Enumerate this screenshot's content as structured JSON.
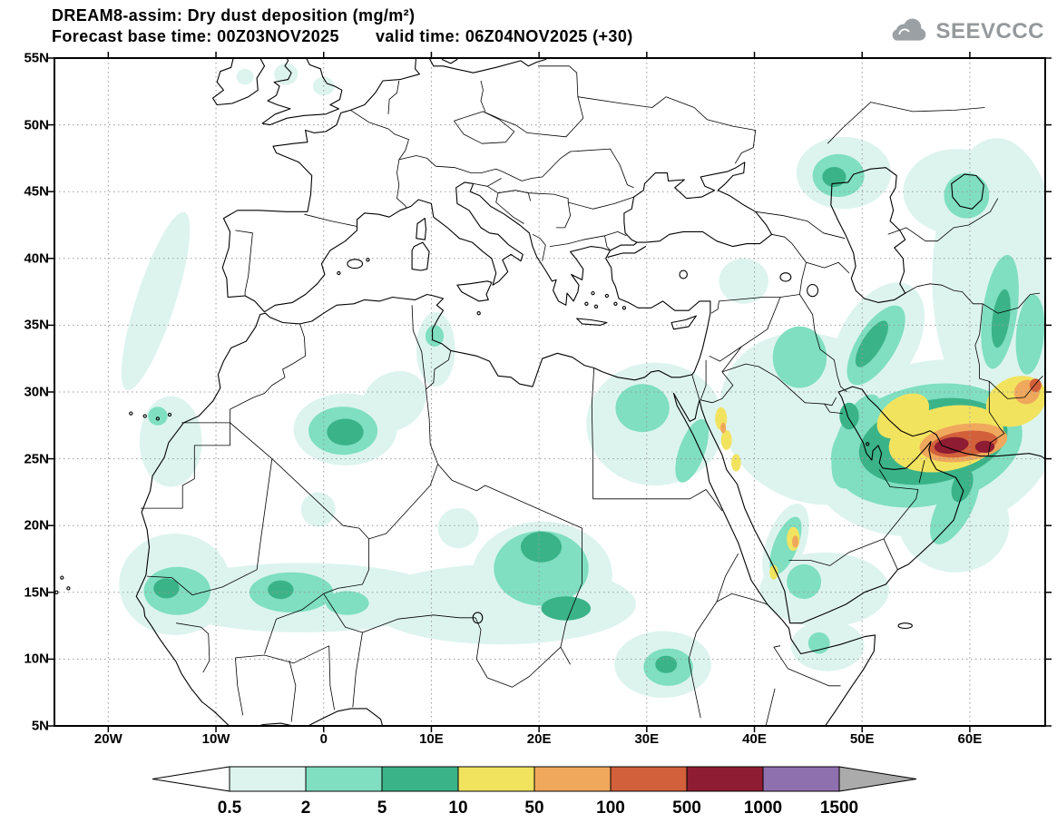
{
  "header": {
    "title_line1": "DREAM8-assim: Dry dust deposition (mg/m²)",
    "forecast_label": "Forecast base time:",
    "forecast_value": "00Z03NOV2025",
    "valid_label": "valid time:",
    "valid_value": "06Z04NOV2025 (+30)"
  },
  "logo": {
    "text": "SEEVCCC"
  },
  "map": {
    "lat_ticks": [
      {
        "label": "55N",
        "deg": 55
      },
      {
        "label": "50N",
        "deg": 50
      },
      {
        "label": "45N",
        "deg": 45
      },
      {
        "label": "40N",
        "deg": 40
      },
      {
        "label": "35N",
        "deg": 35
      },
      {
        "label": "30N",
        "deg": 30
      },
      {
        "label": "25N",
        "deg": 25
      },
      {
        "label": "20N",
        "deg": 20
      },
      {
        "label": "15N",
        "deg": 15
      },
      {
        "label": "10N",
        "deg": 10
      },
      {
        "label": "5N",
        "deg": 5
      }
    ],
    "lon_ticks": [
      {
        "label": "20W",
        "deg": -20
      },
      {
        "label": "10W",
        "deg": -10
      },
      {
        "label": "0",
        "deg": 0
      },
      {
        "label": "10E",
        "deg": 10
      },
      {
        "label": "20E",
        "deg": 20
      },
      {
        "label": "30E",
        "deg": 30
      },
      {
        "label": "40E",
        "deg": 40
      },
      {
        "label": "50E",
        "deg": 50
      },
      {
        "label": "60E",
        "deg": 60
      }
    ]
  },
  "colorbar": {
    "tick_labels": [
      "0.5",
      "2",
      "5",
      "10",
      "50",
      "100",
      "500",
      "1000",
      "1500"
    ],
    "segment_colors": [
      "#ddf4ee",
      "#7fdfc0",
      "#3bb389",
      "#f2e35f",
      "#f0a85c",
      "#d2603a",
      "#8e1c32",
      "#8f70ae"
    ],
    "below_min_color": "#ffffff",
    "above_max_color": "#ababab"
  },
  "chart_data": {
    "type": "heatmap",
    "title": "DREAM8-assim: Dry dust deposition (mg/m²)",
    "model": "DREAM8-assim",
    "variable": "Dry dust deposition",
    "units": "mg/m²",
    "forecast_base_time": "00Z03NOV2025",
    "valid_time": "06Z04NOV2025",
    "lead_hours": 30,
    "lon_range": [
      -25,
      67
    ],
    "lat_range": [
      5,
      55
    ],
    "lon_tick_labels": [
      "20W",
      "10W",
      "0",
      "10E",
      "20E",
      "30E",
      "40E",
      "50E",
      "60E"
    ],
    "lat_tick_labels": [
      "55N",
      "50N",
      "45N",
      "40N",
      "35N",
      "30N",
      "25N",
      "20N",
      "15N",
      "10N",
      "5N"
    ],
    "contour_levels": [
      0.5,
      2,
      5,
      10,
      50,
      100,
      500,
      1000,
      1500
    ],
    "palette": [
      "#ddf4ee",
      "#7fdfc0",
      "#3bb389",
      "#f2e35f",
      "#f0a85c",
      "#d2603a",
      "#8e1c32",
      "#8f70ae"
    ],
    "legend_position": "bottom",
    "grid": "dotted",
    "deposition_regions": [
      {
        "area": "Gulf of Oman / Makran coast (Iran-Oman-Pakistan)",
        "approx_lon": 58,
        "approx_lat": 26,
        "peak_level_mg_m2": "500-1000"
      },
      {
        "area": "Secondary maximum near 61E on Makran coast",
        "approx_lon": 61.5,
        "approx_lat": 26,
        "peak_level_mg_m2": "500-1000"
      },
      {
        "area": "SE Iran / W Pakistan border",
        "approx_lon": 65,
        "approx_lat": 30,
        "peak_level_mg_m2": "100-500"
      },
      {
        "area": "Asir mountains (SW Saudi / Yemen)",
        "approx_lon": 43.8,
        "approx_lat": 19,
        "peak_level_mg_m2": "50-100"
      },
      {
        "area": "Saudi Red Sea coast (Hejaz)",
        "approx_lon": 37,
        "approx_lat": 27,
        "peak_level_mg_m2": "10-50"
      },
      {
        "area": "NE Algeria (Grand Erg)",
        "approx_lon": 2,
        "approx_lat": 27,
        "peak_level_mg_m2": "5-10"
      },
      {
        "area": "Chad / Tibesti",
        "approx_lon": 20,
        "approx_lat": 18,
        "peak_level_mg_m2": "5-10"
      },
      {
        "area": "Sahel band (Senegal to Sudan)",
        "approx_lon": 5,
        "approx_lat": 14,
        "peak_level_mg_m2": "2-5"
      },
      {
        "area": "North Caspian lowland",
        "approx_lon": 48,
        "approx_lat": 46,
        "peak_level_mg_m2": "5-10"
      },
      {
        "area": "Zagros / W Iran band",
        "approx_lon": 51,
        "approx_lat": 34,
        "peak_level_mg_m2": "2-5"
      },
      {
        "area": "E Iran / Turkmenistan band",
        "approx_lon": 62.5,
        "approx_lat": 38,
        "peak_level_mg_m2": "2-5"
      },
      {
        "area": "Atlantic off Morocco / Iberia",
        "approx_lon": -15,
        "approx_lat": 37,
        "peak_level_mg_m2": "0.5-2"
      },
      {
        "area": "Nile valley / E Mediterranean",
        "approx_lon": 30,
        "approx_lat": 28,
        "peak_level_mg_m2": "2-5"
      },
      {
        "area": "South Sudan",
        "approx_lon": 32,
        "approx_lat": 9.5,
        "peak_level_mg_m2": "5-10"
      }
    ]
  }
}
